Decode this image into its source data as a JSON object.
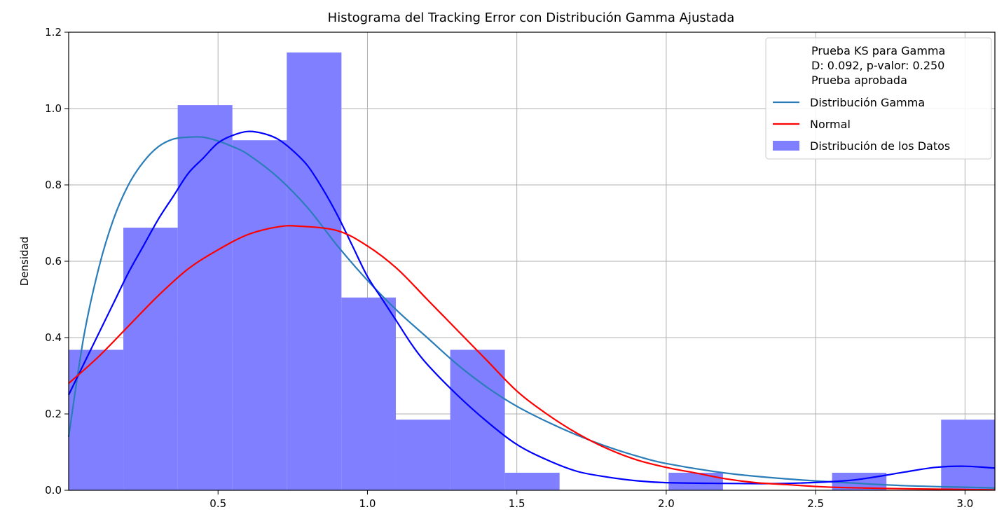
{
  "chart_data": {
    "type": "bar",
    "title": "Histograma del Tracking Error con Distribución Gamma Ajustada",
    "xlabel": "",
    "ylabel": "Densidad",
    "xlim": [
      0.0,
      3.1
    ],
    "ylim": [
      0.0,
      1.2
    ],
    "grid": true,
    "legend_position": "top-right",
    "xticks": [
      "0.5",
      "1.0",
      "1.5",
      "2.0",
      "2.5",
      "3.0"
    ],
    "xtick_values": [
      0.5,
      1.0,
      1.5,
      2.0,
      2.5,
      3.0
    ],
    "yticks": [
      "0.0",
      "0.2",
      "0.4",
      "0.6",
      "0.8",
      "1.0",
      "1.2"
    ],
    "ytick_values": [
      0.0,
      0.2,
      0.4,
      0.6,
      0.8,
      1.0,
      1.2
    ],
    "legend_text": [
      "Prueba KS para Gamma",
      "D: 0.092, p-valor: 0.250",
      "Prueba aprobada"
    ],
    "histogram": {
      "name": "Distribución de los Datos",
      "color": "#7f7fff",
      "bin_edges": [
        0.0,
        0.183,
        0.365,
        0.548,
        0.73,
        0.913,
        1.095,
        1.277,
        1.46,
        1.643,
        1.825,
        2.008,
        2.19,
        2.372,
        2.555,
        2.737,
        2.92,
        3.1
      ],
      "values": [
        0.368,
        0.688,
        1.009,
        0.917,
        1.147,
        0.505,
        0.185,
        0.368,
        0.046,
        0.0,
        0.0,
        0.046,
        0.0,
        0.0,
        0.046,
        0.0,
        0.185
      ]
    },
    "series": [
      {
        "name": "Distribución Gamma",
        "color": "#2a7db8",
        "x": [
          0.0,
          0.05,
          0.1,
          0.15,
          0.2,
          0.25,
          0.3,
          0.35,
          0.4,
          0.45,
          0.5,
          0.55,
          0.6,
          0.7,
          0.8,
          0.9,
          1.0,
          1.1,
          1.2,
          1.3,
          1.4,
          1.5,
          1.6,
          1.7,
          1.8,
          1.9,
          2.0,
          2.2,
          2.4,
          2.6,
          2.8,
          3.0,
          3.1
        ],
        "y": [
          0.14,
          0.4,
          0.58,
          0.71,
          0.8,
          0.86,
          0.9,
          0.92,
          0.925,
          0.925,
          0.915,
          0.9,
          0.88,
          0.82,
          0.74,
          0.64,
          0.55,
          0.47,
          0.4,
          0.33,
          0.27,
          0.22,
          0.18,
          0.145,
          0.115,
          0.09,
          0.07,
          0.045,
          0.03,
          0.02,
          0.012,
          0.008,
          0.006
        ]
      },
      {
        "name": "",
        "color": "#0000ff",
        "x": [
          0.0,
          0.05,
          0.1,
          0.15,
          0.2,
          0.25,
          0.3,
          0.35,
          0.4,
          0.45,
          0.5,
          0.55,
          0.6,
          0.65,
          0.7,
          0.75,
          0.8,
          0.85,
          0.9,
          0.95,
          1.0,
          1.05,
          1.1,
          1.15,
          1.2,
          1.3,
          1.4,
          1.5,
          1.6,
          1.7,
          1.8,
          1.9,
          2.0,
          2.2,
          2.4,
          2.6,
          2.7,
          2.8,
          2.9,
          3.0,
          3.1
        ],
        "y": [
          0.25,
          0.33,
          0.41,
          0.49,
          0.57,
          0.64,
          0.71,
          0.77,
          0.83,
          0.87,
          0.91,
          0.93,
          0.94,
          0.935,
          0.92,
          0.89,
          0.85,
          0.79,
          0.72,
          0.64,
          0.56,
          0.5,
          0.44,
          0.38,
          0.33,
          0.25,
          0.18,
          0.12,
          0.08,
          0.05,
          0.035,
          0.025,
          0.02,
          0.018,
          0.018,
          0.025,
          0.035,
          0.048,
          0.06,
          0.063,
          0.058
        ]
      },
      {
        "name": "Normal",
        "color": "#ff0000",
        "x": [
          0.0,
          0.1,
          0.2,
          0.3,
          0.4,
          0.5,
          0.6,
          0.7,
          0.77,
          0.9,
          1.0,
          1.1,
          1.2,
          1.3,
          1.4,
          1.5,
          1.6,
          1.7,
          1.8,
          1.9,
          2.0,
          2.1,
          2.2,
          2.3,
          2.4,
          2.5,
          2.6,
          2.8,
          3.0,
          3.1
        ],
        "y": [
          0.28,
          0.35,
          0.43,
          0.51,
          0.58,
          0.63,
          0.67,
          0.69,
          0.692,
          0.68,
          0.64,
          0.58,
          0.5,
          0.42,
          0.34,
          0.26,
          0.2,
          0.15,
          0.11,
          0.08,
          0.06,
          0.045,
          0.03,
          0.02,
          0.015,
          0.01,
          0.007,
          0.004,
          0.002,
          0.001
        ]
      }
    ]
  }
}
